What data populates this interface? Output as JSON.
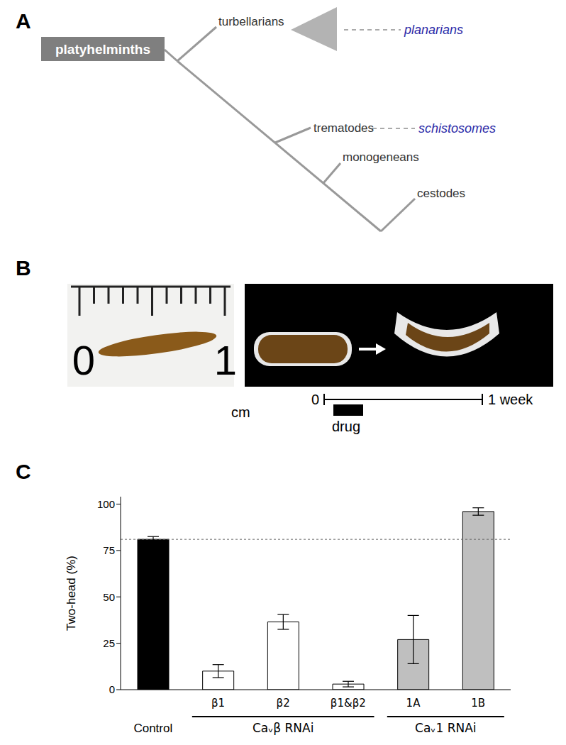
{
  "panels": {
    "A": {
      "label": "A",
      "root": "platyhelminths",
      "nodes": [
        "turbellarians",
        "trematodes",
        "monogeneans",
        "cestodes"
      ],
      "examples": {
        "turbellarians": "planarians",
        "trematodes": "schistosomes"
      }
    },
    "B": {
      "label": "B",
      "ruler_labels": [
        0,
        1
      ],
      "ruler_unit": "cm",
      "timeline_start": 0,
      "timeline_end": "1 week",
      "treatment": "drug"
    },
    "C": {
      "label": "C"
    }
  },
  "chart_data": {
    "type": "bar",
    "ylabel": "Two-head (%)",
    "categories": [
      "Control",
      "β1",
      "β2",
      "β1&β2",
      "1A",
      "1B"
    ],
    "values": [
      81,
      10,
      36.5,
      3,
      27,
      96
    ],
    "errors": [
      1.5,
      3.5,
      4,
      1.5,
      13,
      2
    ],
    "colors": [
      "#000000",
      "#ffffff",
      "#ffffff",
      "#ffffff",
      "#bfbfbf",
      "#bfbfbf"
    ],
    "groups": [
      {
        "label": "Caᵥβ RNAi",
        "categories": [
          "β1",
          "β2",
          "β1&β2"
        ]
      },
      {
        "label": "Caᵥ1 RNAi",
        "categories": [
          "1A",
          "1B"
        ]
      }
    ],
    "ylim": [
      0,
      104
    ],
    "yticks": [
      0,
      25,
      50,
      75,
      100
    ],
    "grid": false
  }
}
